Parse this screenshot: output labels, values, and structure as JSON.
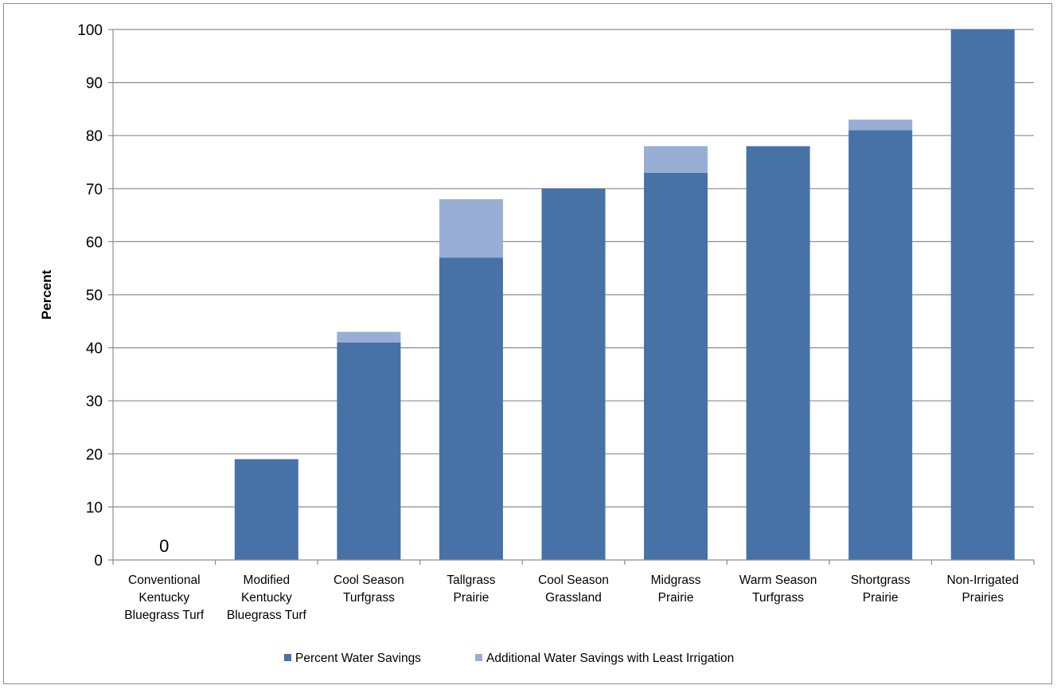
{
  "chart_data": {
    "type": "bar",
    "stacked": true,
    "title": "",
    "xlabel": "",
    "ylabel": "Percent",
    "ylim": [
      0,
      100
    ],
    "yticks": [
      0,
      10,
      20,
      30,
      40,
      50,
      60,
      70,
      80,
      90,
      100
    ],
    "grid": true,
    "legend_position": "bottom",
    "categories": [
      [
        "Conventional",
        "Kentucky",
        "Bluegrass Turf"
      ],
      [
        "Modified",
        "Kentucky",
        "Bluegrass Turf"
      ],
      [
        "Cool Season",
        "Turfgrass"
      ],
      [
        "Tallgrass",
        "Prairie"
      ],
      [
        "Cool Season",
        "Grassland"
      ],
      [
        "Midgrass",
        "Prairie"
      ],
      [
        "Warm Season",
        "Turfgrass"
      ],
      [
        "Shortgrass",
        "Prairie"
      ],
      [
        "Non-Irrigated",
        "Prairies"
      ]
    ],
    "series": [
      {
        "name": "Percent Water Savings",
        "color": "#4672a8",
        "values": [
          0,
          19,
          41,
          57,
          70,
          73,
          78,
          81,
          100
        ]
      },
      {
        "name": "Additional Water Savings with Least Irrigation",
        "color": "#98aed4",
        "values": [
          0,
          0,
          2,
          11,
          0,
          5,
          0,
          2,
          0
        ]
      }
    ],
    "data_labels": [
      {
        "category_index": 0,
        "text": "0"
      }
    ]
  }
}
